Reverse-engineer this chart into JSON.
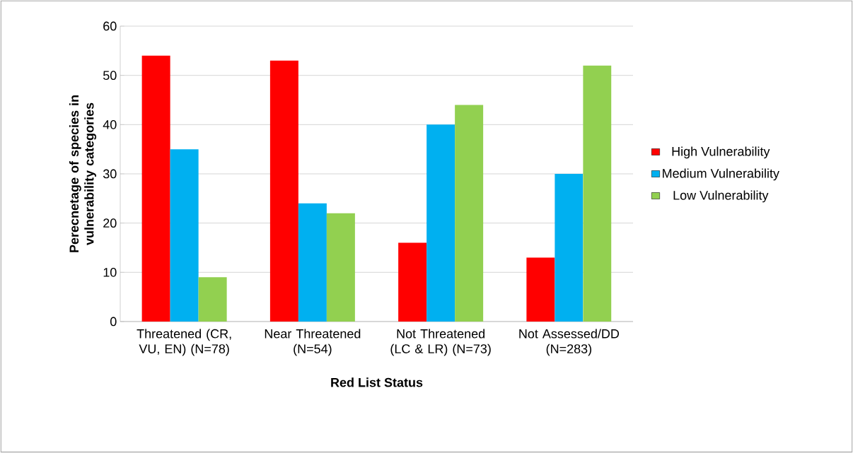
{
  "chart_data": {
    "type": "bar",
    "xlabel": "Red List Status",
    "ylabel": "Perecnetage of species in vulnerability categories",
    "categories": [
      "Threatened (CR, VU, EN) (N=78)",
      "Near Threatened (N=54)",
      "Not Threatened (LC & LR) (N=73)",
      "Not Assessed/DD (N=283)"
    ],
    "series": [
      {
        "name": "High Vulnerability",
        "color": "#ff0000",
        "values": [
          54,
          53,
          16,
          13
        ]
      },
      {
        "name": "Medium Vulnerability",
        "color": "#00b0f0",
        "values": [
          35,
          24,
          40,
          30
        ]
      },
      {
        "name": "Low Vulnerability",
        "color": "#92d050",
        "values": [
          9,
          22,
          44,
          52
        ]
      }
    ],
    "ylim": [
      0,
      60
    ],
    "yticks": [
      0,
      10,
      20,
      30,
      40,
      50,
      60
    ],
    "grid": "y",
    "legend": "right"
  }
}
